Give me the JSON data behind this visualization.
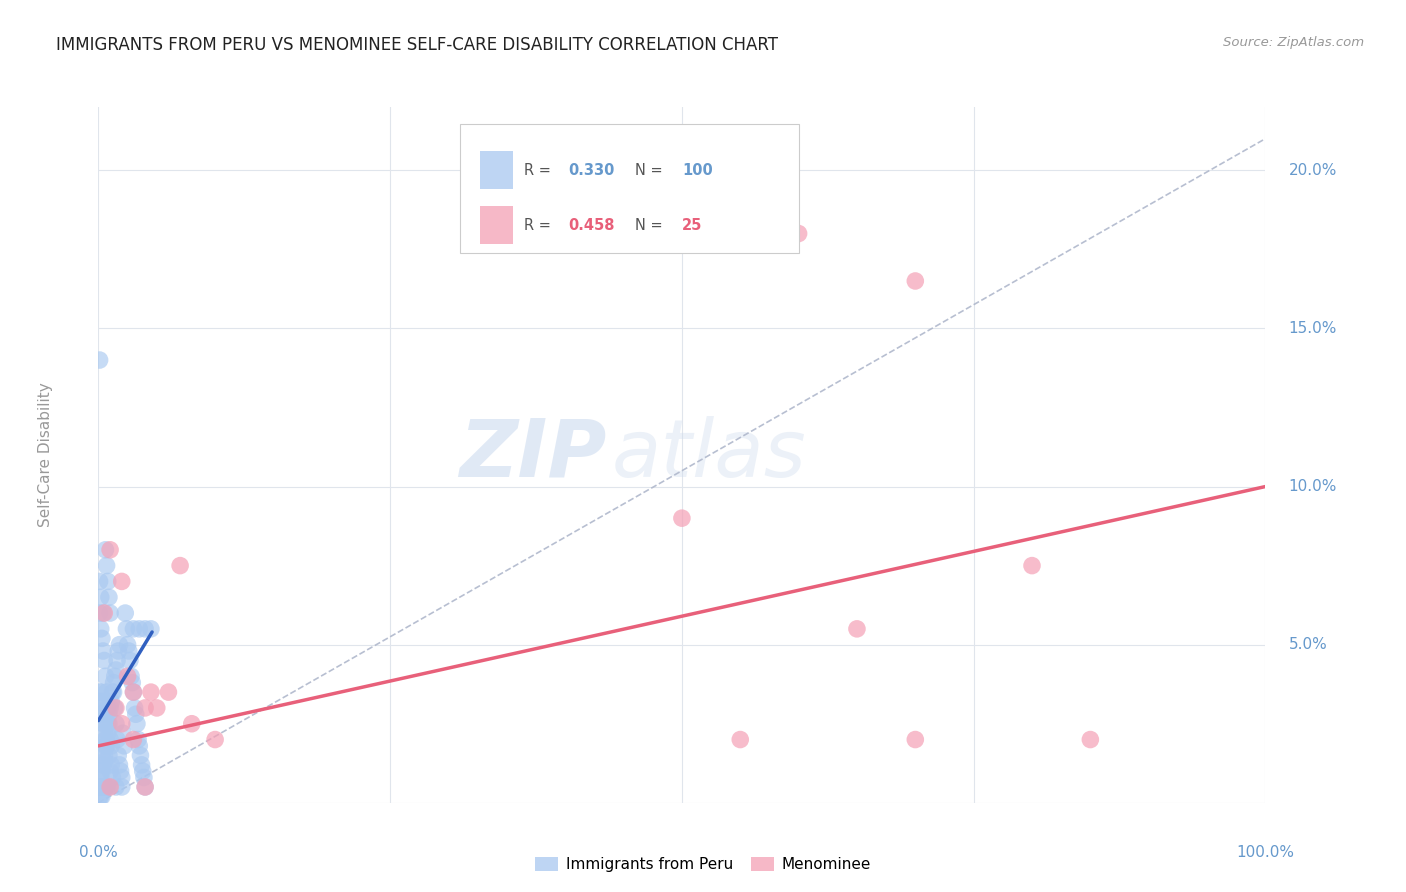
{
  "title": "IMMIGRANTS FROM PERU VS MENOMINEE SELF-CARE DISABILITY CORRELATION CHART",
  "source": "Source: ZipAtlas.com",
  "ylabel": "Self-Care Disability",
  "legend_blue_R": "0.330",
  "legend_blue_N": "100",
  "legend_pink_R": "0.458",
  "legend_pink_N": "25",
  "legend_label_blue": "Immigrants from Peru",
  "legend_label_pink": "Menominee",
  "watermark_zip": "ZIP",
  "watermark_atlas": "atlas",
  "blue_scatter": [
    [
      0.001,
      0.03
    ],
    [
      0.002,
      0.035
    ],
    [
      0.003,
      0.028
    ],
    [
      0.004,
      0.032
    ],
    [
      0.005,
      0.025
    ],
    [
      0.006,
      0.02
    ],
    [
      0.007,
      0.018
    ],
    [
      0.008,
      0.022
    ],
    [
      0.009,
      0.015
    ],
    [
      0.01,
      0.01
    ],
    [
      0.011,
      0.012
    ],
    [
      0.012,
      0.008
    ],
    [
      0.013,
      0.035
    ],
    [
      0.014,
      0.03
    ],
    [
      0.015,
      0.025
    ],
    [
      0.016,
      0.02
    ],
    [
      0.017,
      0.015
    ],
    [
      0.018,
      0.012
    ],
    [
      0.019,
      0.01
    ],
    [
      0.02,
      0.008
    ],
    [
      0.021,
      0.022
    ],
    [
      0.022,
      0.018
    ],
    [
      0.023,
      0.06
    ],
    [
      0.024,
      0.055
    ],
    [
      0.025,
      0.05
    ],
    [
      0.026,
      0.048
    ],
    [
      0.027,
      0.045
    ],
    [
      0.028,
      0.04
    ],
    [
      0.029,
      0.038
    ],
    [
      0.03,
      0.035
    ],
    [
      0.031,
      0.03
    ],
    [
      0.032,
      0.028
    ],
    [
      0.033,
      0.025
    ],
    [
      0.034,
      0.02
    ],
    [
      0.035,
      0.018
    ],
    [
      0.036,
      0.015
    ],
    [
      0.037,
      0.012
    ],
    [
      0.038,
      0.01
    ],
    [
      0.039,
      0.008
    ],
    [
      0.04,
      0.005
    ],
    [
      0.001,
      0.005
    ],
    [
      0.002,
      0.008
    ],
    [
      0.003,
      0.01
    ],
    [
      0.004,
      0.012
    ],
    [
      0.005,
      0.015
    ],
    [
      0.006,
      0.018
    ],
    [
      0.007,
      0.02
    ],
    [
      0.008,
      0.025
    ],
    [
      0.009,
      0.028
    ],
    [
      0.01,
      0.03
    ],
    [
      0.011,
      0.032
    ],
    [
      0.012,
      0.035
    ],
    [
      0.013,
      0.038
    ],
    [
      0.014,
      0.04
    ],
    [
      0.015,
      0.042
    ],
    [
      0.016,
      0.045
    ],
    [
      0.017,
      0.048
    ],
    [
      0.018,
      0.05
    ],
    [
      0.001,
      0.06
    ],
    [
      0.002,
      0.055
    ],
    [
      0.003,
      0.052
    ],
    [
      0.004,
      0.048
    ],
    [
      0.005,
      0.045
    ],
    [
      0.001,
      0.035
    ],
    [
      0.002,
      0.032
    ],
    [
      0.003,
      0.028
    ],
    [
      0.004,
      0.025
    ],
    [
      0.005,
      0.022
    ],
    [
      0.006,
      0.08
    ],
    [
      0.007,
      0.075
    ],
    [
      0.008,
      0.07
    ],
    [
      0.009,
      0.065
    ],
    [
      0.01,
      0.06
    ],
    [
      0.001,
      0.14
    ],
    [
      0.03,
      0.055
    ],
    [
      0.035,
      0.055
    ],
    [
      0.04,
      0.055
    ],
    [
      0.045,
      0.055
    ],
    [
      0.003,
      0.015
    ],
    [
      0.005,
      0.013
    ],
    [
      0.006,
      0.04
    ],
    [
      0.007,
      0.035
    ],
    [
      0.008,
      0.03
    ],
    [
      0.009,
      0.025
    ],
    [
      0.01,
      0.02
    ],
    [
      0.011,
      0.018
    ],
    [
      0.015,
      0.005
    ],
    [
      0.02,
      0.005
    ],
    [
      0.001,
      0.002
    ],
    [
      0.002,
      0.002
    ],
    [
      0.003,
      0.002
    ],
    [
      0.001,
      0.07
    ],
    [
      0.002,
      0.065
    ],
    [
      0.004,
      0.06
    ],
    [
      0.002,
      0.01
    ],
    [
      0.003,
      0.005
    ],
    [
      0.005,
      0.005
    ],
    [
      0.006,
      0.005
    ],
    [
      0.007,
      0.005
    ],
    [
      0.008,
      0.005
    ]
  ],
  "pink_scatter": [
    [
      0.005,
      0.06
    ],
    [
      0.01,
      0.08
    ],
    [
      0.02,
      0.07
    ],
    [
      0.03,
      0.035
    ],
    [
      0.04,
      0.03
    ],
    [
      0.045,
      0.035
    ],
    [
      0.5,
      0.09
    ],
    [
      0.6,
      0.18
    ],
    [
      0.7,
      0.165
    ],
    [
      0.65,
      0.055
    ],
    [
      0.8,
      0.075
    ],
    [
      0.85,
      0.02
    ],
    [
      0.55,
      0.02
    ],
    [
      0.7,
      0.02
    ],
    [
      0.05,
      0.03
    ],
    [
      0.06,
      0.035
    ],
    [
      0.015,
      0.03
    ],
    [
      0.025,
      0.04
    ],
    [
      0.07,
      0.075
    ],
    [
      0.08,
      0.025
    ],
    [
      0.1,
      0.02
    ],
    [
      0.02,
      0.025
    ],
    [
      0.03,
      0.02
    ],
    [
      0.01,
      0.005
    ],
    [
      0.04,
      0.005
    ]
  ],
  "blue_line": {
    "x0": 0.0,
    "y0": 0.026,
    "x1": 0.046,
    "y1": 0.054
  },
  "pink_line": {
    "x0": 0.0,
    "y0": 0.018,
    "x1": 1.0,
    "y1": 0.1
  },
  "blue_dashed_line": {
    "x0": 0.0,
    "y0": 0.0,
    "x1": 1.0,
    "y1": 0.21
  },
  "xlim": [
    0.0,
    1.0
  ],
  "ylim": [
    0.0,
    0.22
  ],
  "yticks": [
    0.0,
    0.05,
    0.1,
    0.15,
    0.2
  ],
  "ytick_labels": [
    "",
    "5.0%",
    "10.0%",
    "15.0%",
    "20.0%"
  ],
  "xticks": [
    0.0,
    0.25,
    0.5,
    0.75,
    1.0
  ],
  "xtick_labels_show": [
    "0.0%",
    "100.0%"
  ],
  "xtick_positions_show": [
    0.0,
    1.0
  ],
  "blue_color": "#A8C8F0",
  "pink_color": "#F4A0B5",
  "blue_line_color": "#3060C0",
  "pink_line_color": "#E8607A",
  "dashed_line_color": "#B0B8CC",
  "grid_color": "#E0E5EC",
  "axis_label_color": "#6699CC",
  "title_color": "#222222"
}
